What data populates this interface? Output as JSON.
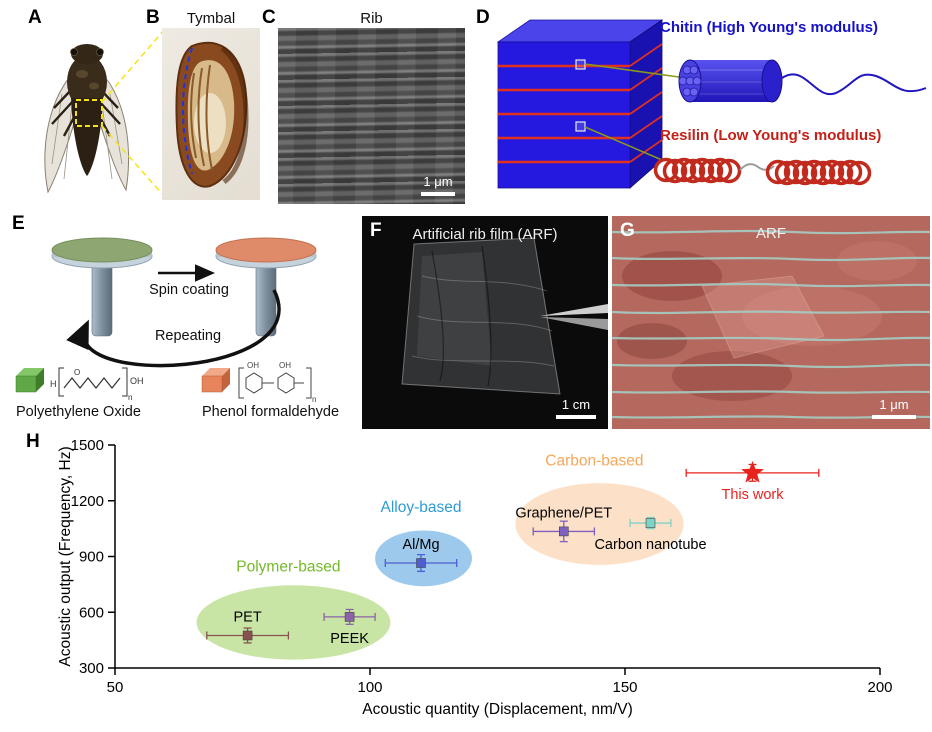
{
  "figure": {
    "panel_a": {
      "label": "A"
    },
    "panel_b": {
      "label": "B",
      "title": "Tymbal"
    },
    "panel_c": {
      "label": "C",
      "title": "Rib",
      "scale_bar": "1 μm"
    },
    "panel_d": {
      "label": "D",
      "chitin_label": "Chitin (High Young's modulus)",
      "chitin_color": "#1512c8",
      "resilin_label": "Resilin (Low Young's modulus)",
      "resilin_color": "#c42018"
    },
    "panel_e": {
      "label": "E",
      "step1_label": "Spin coating",
      "step2_label": "Repeating",
      "material1": "Polyethylene Oxide",
      "material2": "Phenol formaldehyde"
    },
    "panel_f": {
      "label": "F",
      "title": "Artificial rib film (ARF)",
      "scale_bar": "1 cm"
    },
    "panel_g": {
      "label": "G",
      "title": "ARF",
      "scale_bar": "1 μm"
    },
    "panel_h": {
      "label": "H"
    }
  },
  "chart_data": {
    "type": "scatter",
    "title": "",
    "xlabel": "Acoustic quantity (Displacement, nm/V)",
    "ylabel": "Acoustic output (Frequency, Hz)",
    "xlim": [
      50,
      200
    ],
    "ylim": [
      300,
      1500
    ],
    "xticks": [
      50,
      100,
      150,
      200
    ],
    "yticks": [
      300,
      600,
      900,
      1200,
      1500
    ],
    "grid": false,
    "legend_position": "none",
    "groups": [
      {
        "name": "Polymer-based",
        "label_color": "#76b82a",
        "ellipse_color": "#bcdf8e",
        "cx": 85,
        "cy": 545,
        "rx": 19,
        "ry": 200,
        "label_x": 84,
        "label_y": 820
      },
      {
        "name": "Alloy-based",
        "label_color": "#2e9bd6",
        "ellipse_color": "#85bce8",
        "cx": 110.5,
        "cy": 890,
        "rx": 9.5,
        "ry": 150,
        "label_x": 110,
        "label_y": 1140
      },
      {
        "name": "Carbon-based",
        "label_color": "#f5a758",
        "ellipse_color": "#fbd9ba",
        "cx": 145,
        "cy": 1075,
        "rx": 16.5,
        "ry": 220,
        "label_x": 144,
        "label_y": 1390
      }
    ],
    "points": [
      {
        "label": "PET",
        "x": 76,
        "y": 475,
        "xerr": 8,
        "yerr": 40,
        "color": "#8a5050",
        "marker": "square",
        "label_pos": "above"
      },
      {
        "label": "PEEK",
        "x": 96,
        "y": 575,
        "xerr": 5,
        "yerr": 40,
        "color": "#8a63a8",
        "marker": "square",
        "label_pos": "below"
      },
      {
        "label": "Al/Mg",
        "x": 110,
        "y": 865,
        "xerr": 7,
        "yerr": 45,
        "color": "#4f5fd0",
        "marker": "square",
        "label_pos": "above"
      },
      {
        "label": "Graphene/PET",
        "x": 138,
        "y": 1035,
        "xerr": 6,
        "yerr": 55,
        "color": "#7f5fc0",
        "marker": "square",
        "label_pos": "above"
      },
      {
        "label": "Carbon nanotube",
        "x": 155,
        "y": 1080,
        "xerr": 4,
        "yerr": 30,
        "color": "#7fd2c6",
        "marker": "square",
        "label_pos": "below"
      },
      {
        "label": "This work",
        "x": 175,
        "y": 1350,
        "xerr": 13,
        "yerr": 45,
        "color": "#e8231e",
        "marker": "star",
        "label_pos": "below",
        "label_color": "#e8231e"
      }
    ]
  }
}
